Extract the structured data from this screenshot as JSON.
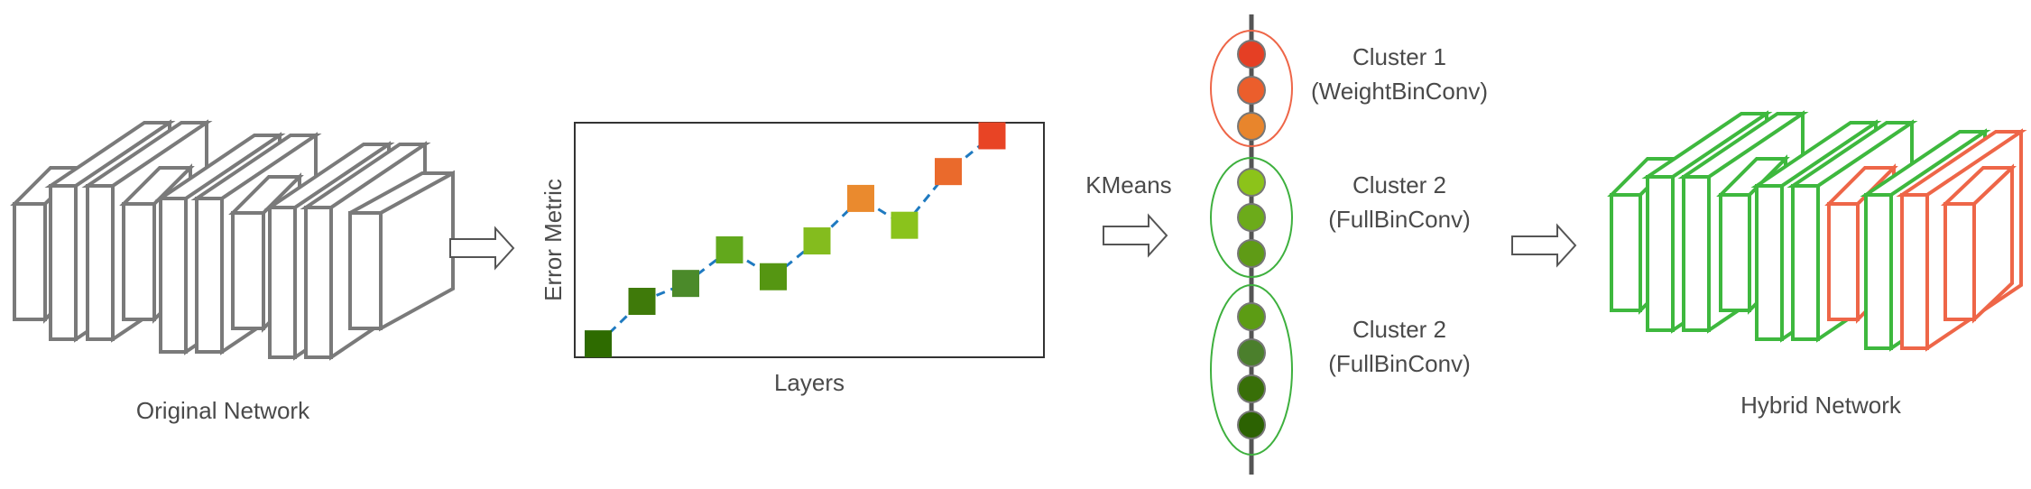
{
  "labels": {
    "original_network": "Original Network",
    "hybrid_network": "Hybrid Network",
    "kmeans": "KMeans"
  },
  "chart_data": {
    "type": "scatter",
    "title": "",
    "xlabel": "Layers",
    "ylabel": "Error Metric",
    "x": [
      1,
      2,
      3,
      4,
      5,
      6,
      7,
      8,
      9,
      10
    ],
    "values": [
      0.06,
      0.25,
      0.33,
      0.48,
      0.36,
      0.52,
      0.71,
      0.59,
      0.83,
      0.99
    ],
    "point_colors": [
      "#2e6b00",
      "#3f7a0a",
      "#4b8a2a",
      "#62a81c",
      "#559612",
      "#84bc1e",
      "#ea8a2e",
      "#8ac31c",
      "#ea6a2c",
      "#e84425"
    ],
    "line_color": "#1f7ac0",
    "ylim": [
      0,
      1
    ],
    "grid": false
  },
  "clusters": [
    {
      "name": "Cluster 1",
      "type": "(WeightBinConv)",
      "color": "#ee6648",
      "dots": [
        "#e53f24",
        "#eb5e2c",
        "#e8852c"
      ]
    },
    {
      "name": "Cluster 2",
      "type": "(FullBinConv)",
      "color": "#3eb03e",
      "dots": [
        "#8cc31a",
        "#6cab1a",
        "#5f9b16"
      ]
    },
    {
      "name": "Cluster 2",
      "type": "(FullBinConv)",
      "color": "#3eb03e",
      "dots": [
        "#5c9c14",
        "#4b7f2c",
        "#386f08",
        "#2c6202"
      ]
    }
  ],
  "colors": {
    "original_layer": "#7a7a7a",
    "binary_layer": "#3eb83e",
    "weight_bin_layer": "#ee6648",
    "axis_line": "#555555",
    "arrow": "#555555"
  }
}
